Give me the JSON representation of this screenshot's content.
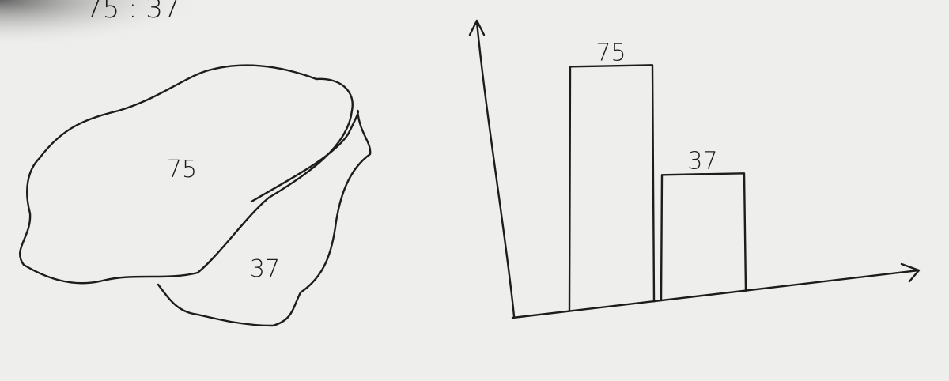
{
  "ratio_text": "75 : 37",
  "blob_sketch": {
    "large_label": "75",
    "small_label": "37"
  },
  "bar_sketch": {
    "values": [
      75,
      37
    ]
  }
}
